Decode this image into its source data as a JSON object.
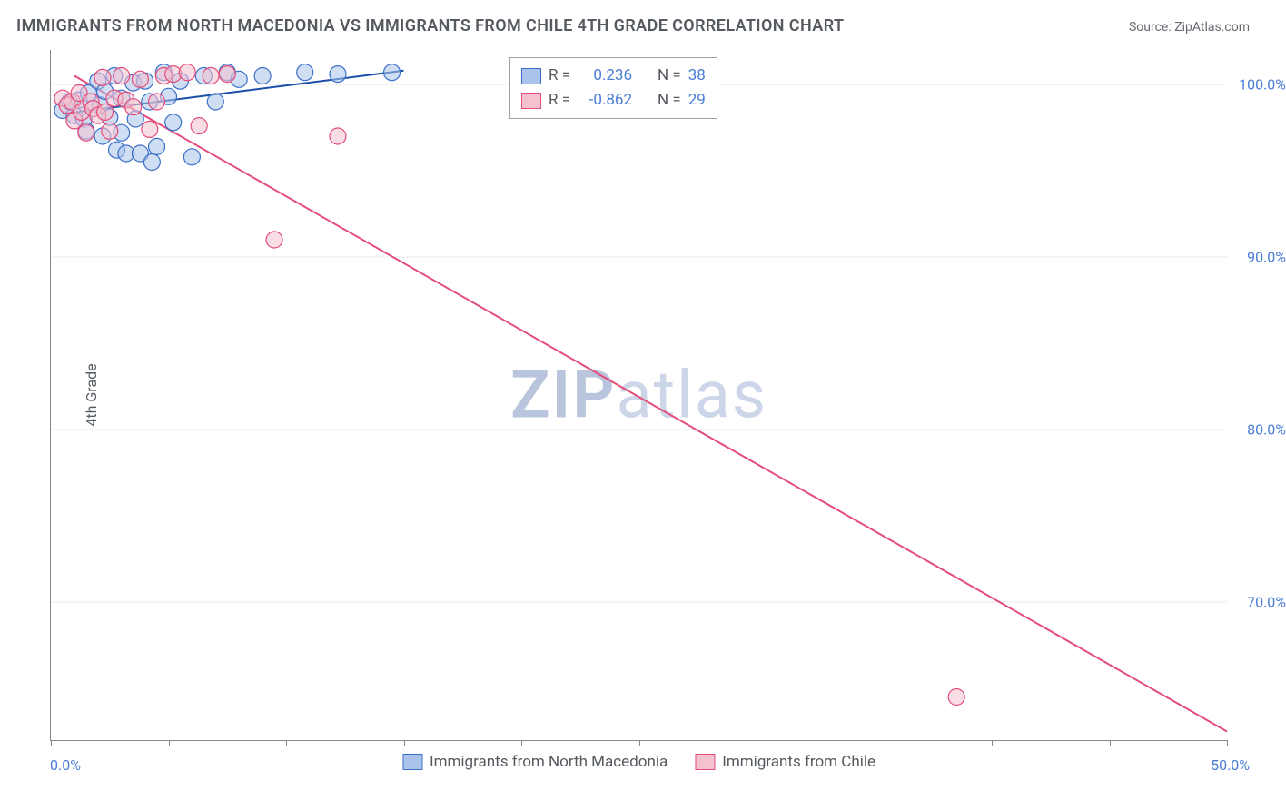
{
  "title": "IMMIGRANTS FROM NORTH MACEDONIA VS IMMIGRANTS FROM CHILE 4TH GRADE CORRELATION CHART",
  "source": "Source: ZipAtlas.com",
  "ylabel": "4th Grade",
  "watermark_bold": "ZIP",
  "watermark_light": "atlas",
  "chart": {
    "type": "scatter_with_regression",
    "xlim": [
      0,
      50
    ],
    "ylim": [
      62,
      102
    ],
    "x_ticks": [
      0,
      5,
      10,
      15,
      20,
      25,
      30,
      35,
      40,
      45,
      50
    ],
    "y_ticks": [
      70,
      80,
      90,
      100
    ],
    "x_tick_labels": {
      "0": "0.0%",
      "50": "50.0%"
    },
    "y_tick_labels": {
      "70": "70.0%",
      "80": "80.0%",
      "90": "90.0%",
      "100": "100.0%"
    },
    "grid_color": "#e8e8e8",
    "axis_color": "#888888",
    "background_color": "#ffffff",
    "marker_radius": 9,
    "marker_stroke_width": 1.2,
    "line_width": 2,
    "series": [
      {
        "name": "Immigrants from North Macedonia",
        "fill": "#a9c3ea",
        "stroke": "#3b6fc9",
        "line_color": "#1b4ea8",
        "R": "0.236",
        "N": "38",
        "points": [
          [
            0.5,
            98.5
          ],
          [
            0.8,
            99.0
          ],
          [
            1.0,
            98.2
          ],
          [
            1.2,
            99.1
          ],
          [
            1.4,
            98.0
          ],
          [
            1.5,
            97.3
          ],
          [
            1.6,
            99.5
          ],
          [
            1.8,
            98.6
          ],
          [
            2.0,
            100.2
          ],
          [
            2.1,
            98.8
          ],
          [
            2.2,
            97.0
          ],
          [
            2.3,
            99.6
          ],
          [
            2.5,
            98.1
          ],
          [
            2.7,
            100.5
          ],
          [
            2.8,
            96.2
          ],
          [
            3.0,
            99.2
          ],
          [
            3.0,
            97.2
          ],
          [
            3.2,
            96.0
          ],
          [
            3.5,
            100.1
          ],
          [
            3.6,
            98.0
          ],
          [
            3.8,
            96.0
          ],
          [
            4.0,
            100.2
          ],
          [
            4.2,
            99.0
          ],
          [
            4.3,
            95.5
          ],
          [
            4.5,
            96.4
          ],
          [
            4.8,
            100.7
          ],
          [
            5.0,
            99.3
          ],
          [
            5.2,
            97.8
          ],
          [
            5.5,
            100.2
          ],
          [
            6.0,
            95.8
          ],
          [
            6.5,
            100.5
          ],
          [
            7.0,
            99.0
          ],
          [
            7.5,
            100.7
          ],
          [
            8.0,
            100.3
          ],
          [
            9.0,
            100.5
          ],
          [
            10.8,
            100.7
          ],
          [
            12.2,
            100.6
          ],
          [
            14.5,
            100.7
          ]
        ],
        "regression": {
          "x1": 0.5,
          "y1": 98.3,
          "x2": 15.0,
          "y2": 100.8
        }
      },
      {
        "name": "Immigrants from Chile",
        "fill": "#f4c1cf",
        "stroke": "#e44d7a",
        "line_color": "#e44d7a",
        "R": "-0.862",
        "N": "29",
        "points": [
          [
            0.5,
            99.2
          ],
          [
            0.7,
            98.8
          ],
          [
            0.9,
            99.0
          ],
          [
            1.0,
            97.9
          ],
          [
            1.2,
            99.5
          ],
          [
            1.3,
            98.4
          ],
          [
            1.5,
            97.2
          ],
          [
            1.7,
            99.0
          ],
          [
            1.8,
            98.6
          ],
          [
            2.0,
            98.2
          ],
          [
            2.2,
            100.4
          ],
          [
            2.3,
            98.4
          ],
          [
            2.5,
            97.3
          ],
          [
            2.7,
            99.2
          ],
          [
            3.0,
            100.5
          ],
          [
            3.2,
            99.1
          ],
          [
            3.5,
            98.7
          ],
          [
            3.8,
            100.3
          ],
          [
            4.2,
            97.4
          ],
          [
            4.5,
            99.0
          ],
          [
            4.8,
            100.5
          ],
          [
            5.2,
            100.6
          ],
          [
            5.8,
            100.7
          ],
          [
            6.3,
            97.6
          ],
          [
            6.8,
            100.5
          ],
          [
            7.5,
            100.6
          ],
          [
            9.5,
            91.0
          ],
          [
            12.2,
            97.0
          ],
          [
            38.5,
            64.5
          ]
        ],
        "regression": {
          "x1": 1.0,
          "y1": 100.5,
          "x2": 50.0,
          "y2": 62.5
        }
      }
    ]
  },
  "legend_box": {
    "rows": [
      {
        "swatch_fill": "#a9c3ea",
        "swatch_stroke": "#3b6fc9",
        "r_label": "R =",
        "r_val": "0.236",
        "n_label": "N =",
        "n_val": "38"
      },
      {
        "swatch_fill": "#f4c1cf",
        "swatch_stroke": "#e44d7a",
        "r_label": "R =",
        "r_val": "-0.862",
        "n_label": "N =",
        "n_val": "29"
      }
    ]
  },
  "bottom_legend": [
    {
      "swatch_fill": "#a9c3ea",
      "swatch_stroke": "#3b6fc9",
      "label": "Immigrants from North Macedonia"
    },
    {
      "swatch_fill": "#f4c1cf",
      "swatch_stroke": "#e44d7a",
      "label": "Immigrants from Chile"
    }
  ]
}
